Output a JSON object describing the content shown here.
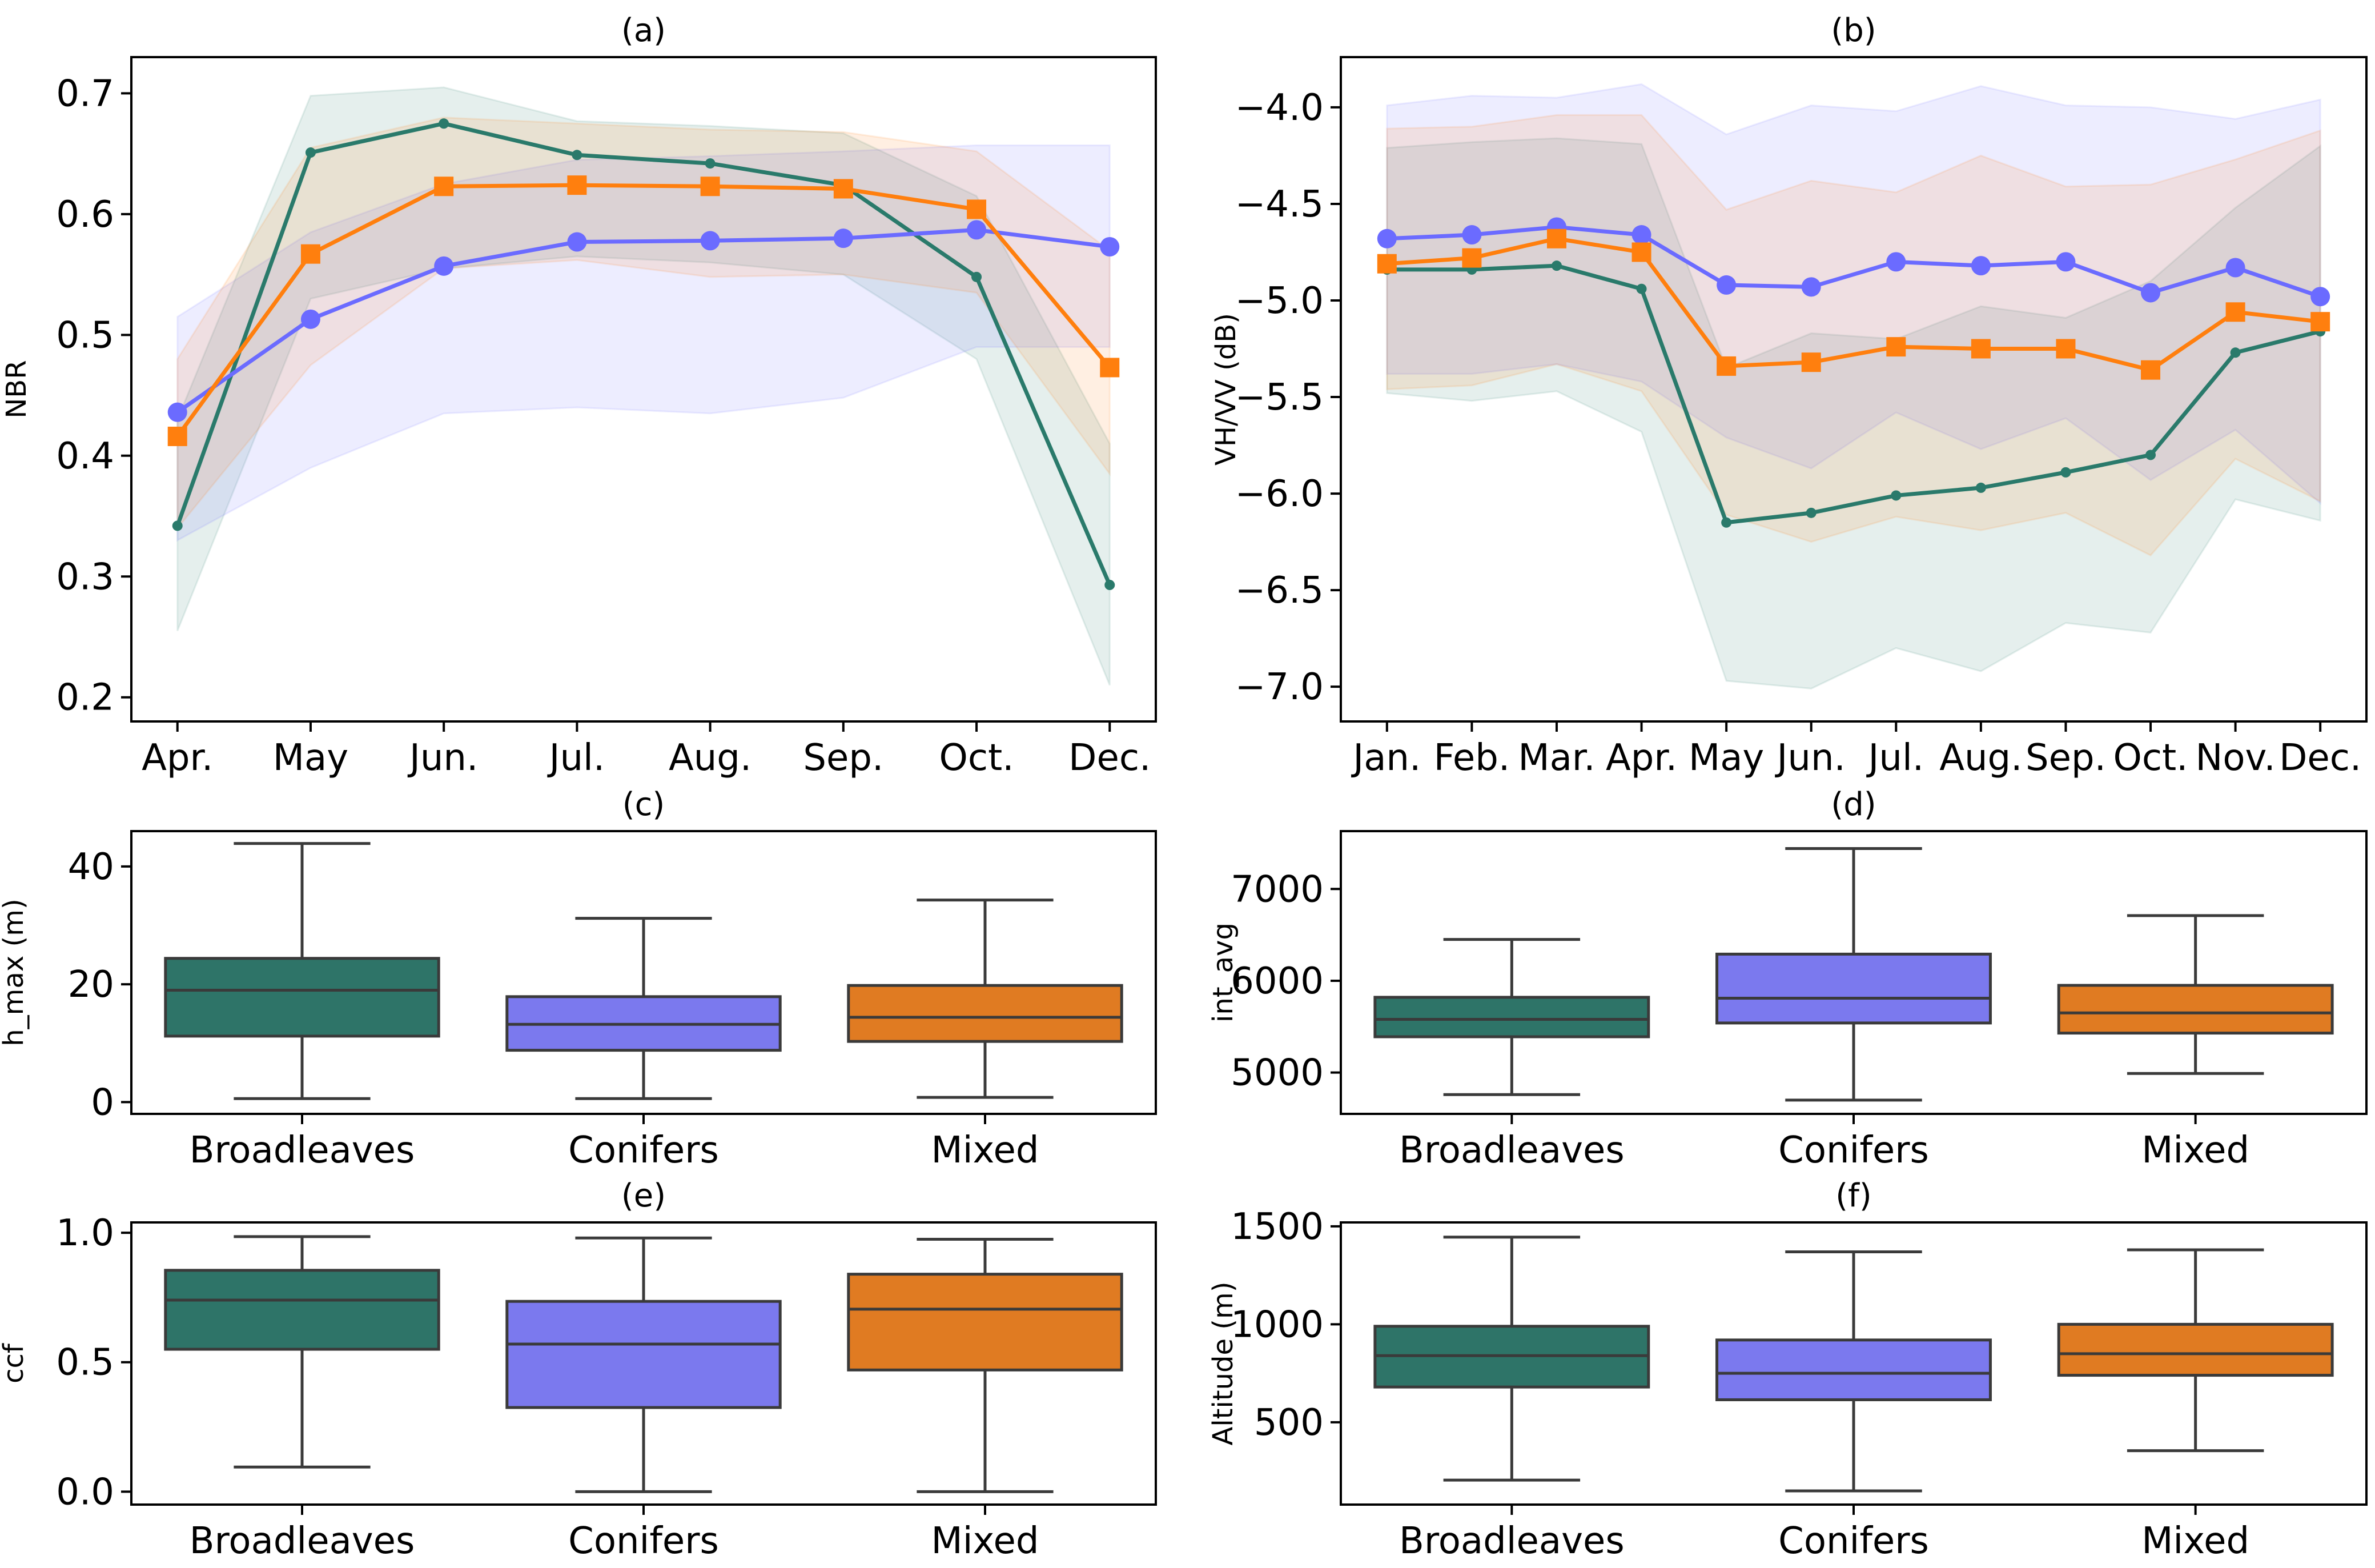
{
  "colors": {
    "broadleaves": "#2a7a6b",
    "conifers": "#6b6bff",
    "mixed": "#ff7f0e",
    "box_broadleaves": "#2e7468",
    "box_conifers": "#7b79ee",
    "box_mixed": "#e07b22",
    "whisker": "#3a3a3a"
  },
  "chart_data": [
    {
      "panel": "(a)",
      "type": "line",
      "title": "(a)",
      "xlabel": "",
      "ylabel": "NBR",
      "categories": [
        "Apr.",
        "May",
        "Jun.",
        "Jul.",
        "Aug.",
        "Sep.",
        "Oct.",
        "Dec."
      ],
      "ylim": [
        0.18,
        0.73
      ],
      "yticks": [
        0.2,
        0.3,
        0.4,
        0.5,
        0.6,
        0.7
      ],
      "ytick_labels": [
        "0.2",
        "0.3",
        "0.4",
        "0.5",
        "0.6",
        "0.7"
      ],
      "series": [
        {
          "name": "Broadleaves",
          "color_key": "broadleaves",
          "marker": "small-circle",
          "values": [
            0.342,
            0.651,
            0.675,
            0.649,
            0.642,
            0.624,
            0.548,
            0.293
          ],
          "lower": [
            0.255,
            0.53,
            0.555,
            0.565,
            0.56,
            0.55,
            0.48,
            0.21
          ],
          "upper": [
            0.43,
            0.698,
            0.705,
            0.677,
            0.673,
            0.667,
            0.615,
            0.41
          ]
        },
        {
          "name": "Conifers",
          "color_key": "conifers",
          "marker": "circle",
          "values": [
            0.436,
            0.513,
            0.557,
            0.577,
            0.578,
            0.58,
            0.587,
            0.573
          ],
          "lower": [
            0.33,
            0.39,
            0.435,
            0.44,
            0.435,
            0.448,
            0.49,
            0.49
          ],
          "upper": [
            0.515,
            0.585,
            0.625,
            0.645,
            0.648,
            0.652,
            0.657,
            0.657
          ]
        },
        {
          "name": "Mixed",
          "color_key": "mixed",
          "marker": "square",
          "values": [
            0.416,
            0.567,
            0.623,
            0.624,
            0.623,
            0.621,
            0.604,
            0.473
          ],
          "lower": [
            0.34,
            0.475,
            0.555,
            0.562,
            0.548,
            0.55,
            0.535,
            0.385
          ],
          "upper": [
            0.48,
            0.655,
            0.68,
            0.675,
            0.67,
            0.668,
            0.652,
            0.57
          ]
        }
      ]
    },
    {
      "panel": "(b)",
      "type": "line",
      "title": "(b)",
      "xlabel": "",
      "ylabel": "VH/VV (dB)",
      "categories": [
        "Jan.",
        "Feb.",
        "Mar.",
        "Apr.",
        "May",
        "Jun.",
        "Jul.",
        "Aug.",
        "Sep.",
        "Oct.",
        "Nov.",
        "Dec."
      ],
      "ylim": [
        -7.18,
        -3.74
      ],
      "yticks": [
        -7.0,
        -6.5,
        -6.0,
        -5.5,
        -5.0,
        -4.5,
        -4.0
      ],
      "ytick_labels": [
        "−7.0",
        "−6.5",
        "−6.0",
        "−5.5",
        "−5.0",
        "−4.5",
        "−4.0"
      ],
      "series": [
        {
          "name": "Broadleaves",
          "color_key": "broadleaves",
          "marker": "small-circle",
          "values": [
            -4.84,
            -4.84,
            -4.82,
            -4.94,
            -6.15,
            -6.1,
            -6.01,
            -5.97,
            -5.89,
            -5.8,
            -5.27,
            -5.16
          ],
          "lower": [
            -5.48,
            -5.52,
            -5.47,
            -5.68,
            -6.97,
            -7.01,
            -6.8,
            -6.92,
            -6.67,
            -6.72,
            -6.03,
            -6.14
          ],
          "upper": [
            -4.21,
            -4.18,
            -4.16,
            -4.19,
            -5.35,
            -5.17,
            -5.2,
            -5.03,
            -5.09,
            -4.9,
            -4.52,
            -4.2
          ]
        },
        {
          "name": "Conifers",
          "color_key": "conifers",
          "marker": "circle",
          "values": [
            -4.68,
            -4.66,
            -4.62,
            -4.66,
            -4.92,
            -4.93,
            -4.8,
            -4.82,
            -4.8,
            -4.96,
            -4.83,
            -4.98
          ],
          "lower": [
            -5.38,
            -5.38,
            -5.33,
            -5.42,
            -5.71,
            -5.87,
            -5.58,
            -5.77,
            -5.61,
            -5.93,
            -5.67,
            -6.05
          ],
          "upper": [
            -3.99,
            -3.94,
            -3.95,
            -3.88,
            -4.14,
            -3.99,
            -4.02,
            -3.89,
            -3.99,
            -4.0,
            -4.06,
            -3.96
          ]
        },
        {
          "name": "Mixed",
          "color_key": "mixed",
          "marker": "square",
          "values": [
            -4.81,
            -4.78,
            -4.68,
            -4.75,
            -5.34,
            -5.32,
            -5.24,
            -5.25,
            -5.25,
            -5.36,
            -5.06,
            -5.11
          ],
          "lower": [
            -5.46,
            -5.44,
            -5.33,
            -5.47,
            -6.11,
            -6.25,
            -6.12,
            -6.19,
            -6.1,
            -6.32,
            -5.82,
            -6.04
          ],
          "upper": [
            -4.11,
            -4.1,
            -4.04,
            -4.04,
            -4.53,
            -4.38,
            -4.44,
            -4.25,
            -4.41,
            -4.4,
            -4.27,
            -4.12
          ]
        }
      ]
    },
    {
      "panel": "(c)",
      "type": "box",
      "title": "(c)",
      "xlabel": "",
      "ylabel": "h_max (m)",
      "categories": [
        "Broadleaves",
        "Conifers",
        "Mixed"
      ],
      "ylim": [
        -2,
        46
      ],
      "yticks": [
        0,
        20,
        40
      ],
      "ytick_labels": [
        "0",
        "20",
        "40"
      ],
      "boxes": [
        {
          "name": "Broadleaves",
          "color_key": "box_broadleaves",
          "min": 0.6,
          "q1": 11.2,
          "median": 19,
          "q3": 24.4,
          "max": 43.9
        },
        {
          "name": "Conifers",
          "color_key": "box_conifers",
          "min": 0.6,
          "q1": 8.8,
          "median": 13.2,
          "q3": 17.9,
          "max": 31.2
        },
        {
          "name": "Mixed",
          "color_key": "box_mixed",
          "min": 0.8,
          "q1": 10.3,
          "median": 14.4,
          "q3": 19.8,
          "max": 34.3
        }
      ]
    },
    {
      "panel": "(d)",
      "type": "box",
      "title": "(d)",
      "xlabel": "",
      "ylabel": "int_avg",
      "categories": [
        "Broadleaves",
        "Conifers",
        "Mixed"
      ],
      "ylim": [
        4550,
        7630
      ],
      "yticks": [
        5000,
        6000,
        7000
      ],
      "ytick_labels": [
        "5000",
        "6000",
        "7000"
      ],
      "boxes": [
        {
          "name": "Broadleaves",
          "color_key": "box_broadleaves",
          "min": 4760,
          "q1": 5390,
          "median": 5580,
          "q3": 5820,
          "max": 6450
        },
        {
          "name": "Conifers",
          "color_key": "box_conifers",
          "min": 4700,
          "q1": 5540,
          "median": 5810,
          "q3": 6290,
          "max": 7440
        },
        {
          "name": "Mixed",
          "color_key": "box_mixed",
          "min": 4990,
          "q1": 5430,
          "median": 5650,
          "q3": 5950,
          "max": 6710
        }
      ]
    },
    {
      "panel": "(e)",
      "type": "box",
      "title": "(e)",
      "xlabel": "",
      "ylabel": "ccf",
      "categories": [
        "Broadleaves",
        "Conifers",
        "Mixed"
      ],
      "ylim": [
        -0.05,
        1.04
      ],
      "yticks": [
        0.0,
        0.5,
        1.0
      ],
      "ytick_labels": [
        "0.0",
        "0.5",
        "1.0"
      ],
      "boxes": [
        {
          "name": "Broadleaves",
          "color_key": "box_broadleaves",
          "min": 0.095,
          "q1": 0.55,
          "median": 0.74,
          "q3": 0.855,
          "max": 0.985
        },
        {
          "name": "Conifers",
          "color_key": "box_conifers",
          "min": 0.0,
          "q1": 0.325,
          "median": 0.57,
          "q3": 0.735,
          "max": 0.98
        },
        {
          "name": "Mixed",
          "color_key": "box_mixed",
          "min": 0.0,
          "q1": 0.47,
          "median": 0.705,
          "q3": 0.84,
          "max": 0.975
        }
      ]
    },
    {
      "panel": "(f)",
      "type": "box",
      "title": "(f)",
      "xlabel": "",
      "ylabel": "Altitude (m)",
      "categories": [
        "Broadleaves",
        "Conifers",
        "Mixed"
      ],
      "ylim": [
        80,
        1520
      ],
      "yticks": [
        500,
        1000,
        1500
      ],
      "ytick_labels": [
        "500",
        "1000",
        "1500"
      ],
      "boxes": [
        {
          "name": "Broadleaves",
          "color_key": "box_broadleaves",
          "min": 205,
          "q1": 680,
          "median": 840,
          "q3": 990,
          "max": 1445
        },
        {
          "name": "Conifers",
          "color_key": "box_conifers",
          "min": 150,
          "q1": 615,
          "median": 750,
          "q3": 920,
          "max": 1370
        },
        {
          "name": "Mixed",
          "color_key": "box_mixed",
          "min": 355,
          "q1": 740,
          "median": 850,
          "q3": 1000,
          "max": 1380
        }
      ]
    }
  ]
}
